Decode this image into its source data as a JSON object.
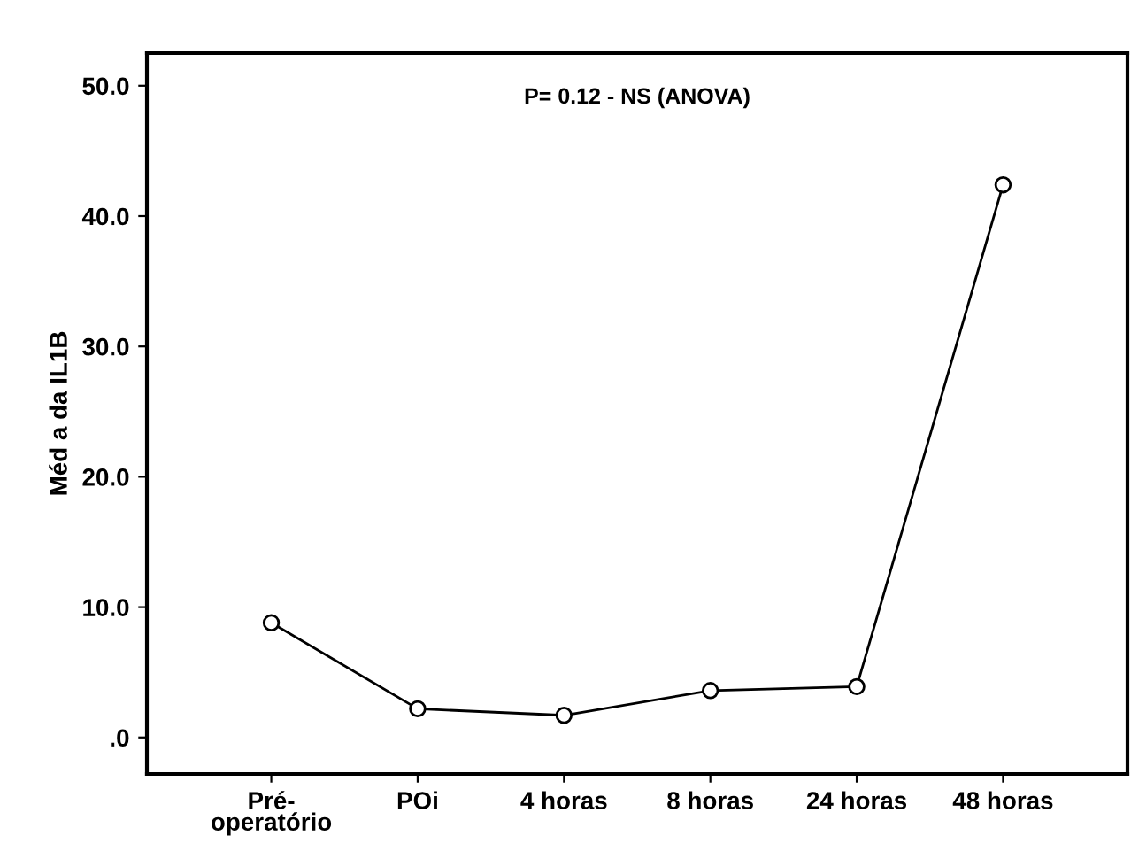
{
  "chart_data": {
    "type": "line",
    "ylabel": "Méd a da IL1B",
    "categories": [
      "Pré-\noperatório",
      "POi",
      "4 horas",
      "8 horas",
      "24 horas",
      "48 horas"
    ],
    "series": [
      {
        "color": "#000000",
        "values": [
          8.8,
          2.2,
          1.7,
          3.6,
          3.9,
          42.4
        ]
      }
    ],
    "ylim": [
      -2.8,
      52.5
    ],
    "yticks": [
      {
        "value": 0,
        "label": ".0"
      },
      {
        "value": 10,
        "label": "10.0"
      },
      {
        "value": 20,
        "label": "20.0"
      },
      {
        "value": 30,
        "label": "30.0"
      },
      {
        "value": 40,
        "label": "40.0"
      },
      {
        "value": 50,
        "label": "50.0"
      }
    ],
    "annotations": [
      "P= 0.12 - NS (ANOVA)"
    ],
    "marker": "circle",
    "line_style": "solid",
    "grid": false,
    "legend": false
  }
}
